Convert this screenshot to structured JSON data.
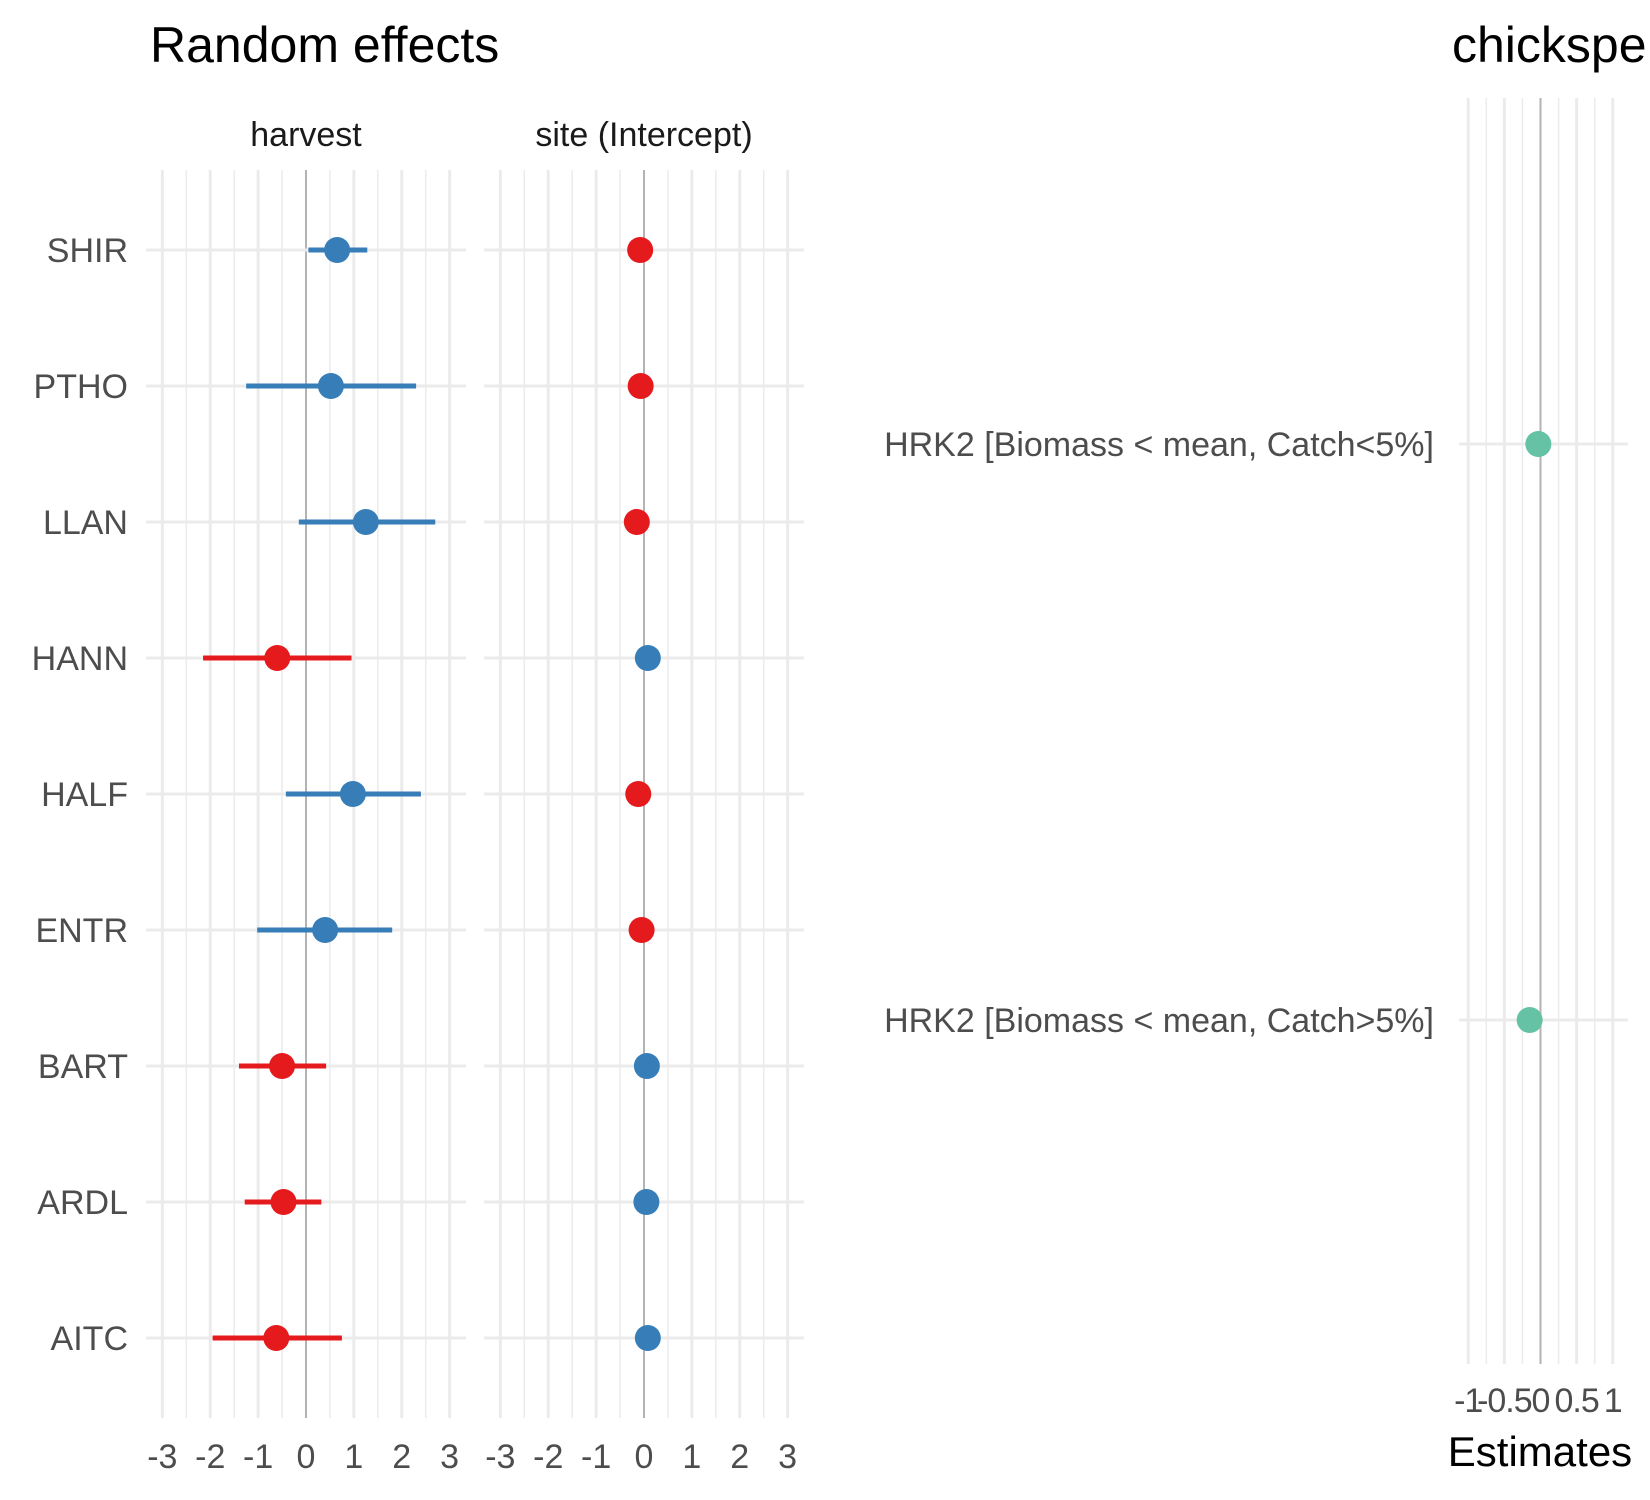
{
  "chart_data": [
    {
      "type": "dot-whisker",
      "title": "Random effects",
      "categories": [
        "SHIR",
        "PTHO",
        "LLAN",
        "HANN",
        "HALF",
        "ENTR",
        "BART",
        "ARDL",
        "AITC"
      ],
      "xlim": [
        -3.3,
        3.3
      ],
      "xticks": [
        "-3",
        "-2",
        "-1",
        "0",
        "1",
        "2",
        "3"
      ],
      "grid": true,
      "colors": {
        "positive": "#377eb8",
        "negative": "#e41a1c"
      },
      "facets": [
        {
          "name": "harvest",
          "estimates": [
            0.65,
            0.52,
            1.25,
            -0.6,
            0.98,
            0.4,
            -0.5,
            -0.47,
            -0.62
          ],
          "lower": [
            0.05,
            -1.25,
            -0.15,
            -2.15,
            -0.42,
            -1.02,
            -1.4,
            -1.28,
            -1.95
          ],
          "upper": [
            1.28,
            2.3,
            2.7,
            0.95,
            2.4,
            1.8,
            0.42,
            0.32,
            0.75
          ]
        },
        {
          "name": "site (Intercept)",
          "estimates": [
            -0.08,
            -0.07,
            -0.15,
            0.08,
            -0.12,
            -0.05,
            0.06,
            0.05,
            0.08
          ],
          "lower": [
            -0.08,
            -0.07,
            -0.15,
            0.08,
            -0.12,
            -0.05,
            0.06,
            0.05,
            0.08
          ],
          "upper": [
            -0.08,
            -0.07,
            -0.15,
            0.08,
            -0.12,
            -0.05,
            0.06,
            0.05,
            0.08
          ]
        }
      ]
    },
    {
      "type": "dot-whisker",
      "title": "chickspe",
      "xlabel": "Estimates",
      "categories": [
        "HRK2 [Biomass < mean, Catch<5%]",
        "HRK2 [Biomass < mean, Catch>5%]"
      ],
      "estimates": [
        -0.03,
        -0.15
      ],
      "xlim": [
        -1.1,
        1.1
      ],
      "xticks": [
        "-1",
        "-0.5",
        "0",
        "0.5",
        "1"
      ],
      "grid": true,
      "color": "#66c2a5"
    }
  ]
}
